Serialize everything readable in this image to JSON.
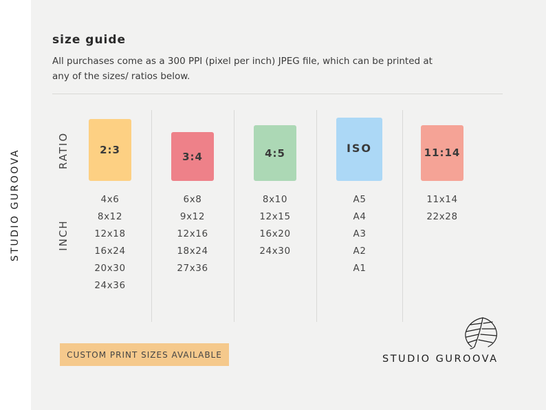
{
  "sidebar": {
    "brand": "STUDIO GUROOVA"
  },
  "header": {
    "title": "size guide",
    "description": "All purchases come as a 300 PPI (pixel per inch) JPEG file, which can be printed at any of the sizes/ ratios below."
  },
  "labels": {
    "ratio": "RATIO",
    "inch": "INCH"
  },
  "columns": [
    {
      "ratio": "2:3",
      "color": "#fdd083",
      "sizes": [
        "4x6",
        "8x12",
        "12x18",
        "16x24",
        "20x30",
        "24x36"
      ]
    },
    {
      "ratio": "3:4",
      "color": "#ee8189",
      "sizes": [
        "6x8",
        "9x12",
        "12x16",
        "18x24",
        "27x36"
      ]
    },
    {
      "ratio": "4:5",
      "color": "#acd8b5",
      "sizes": [
        "8x10",
        "12x15",
        "16x20",
        "24x30"
      ]
    },
    {
      "ratio": "ISO",
      "color": "#acd8f6",
      "sizes": [
        "A5",
        "A4",
        "A3",
        "A2",
        "A1"
      ]
    },
    {
      "ratio": "11:14",
      "color": "#f5a396",
      "sizes": [
        "11x14",
        "22x28"
      ]
    }
  ],
  "banner": {
    "text": "CUSTOM PRINT SIZES AVAILABLE"
  },
  "footer": {
    "brand": "STUDIO GUROOVA",
    "logo_icon": "monstera-leaf-icon"
  }
}
